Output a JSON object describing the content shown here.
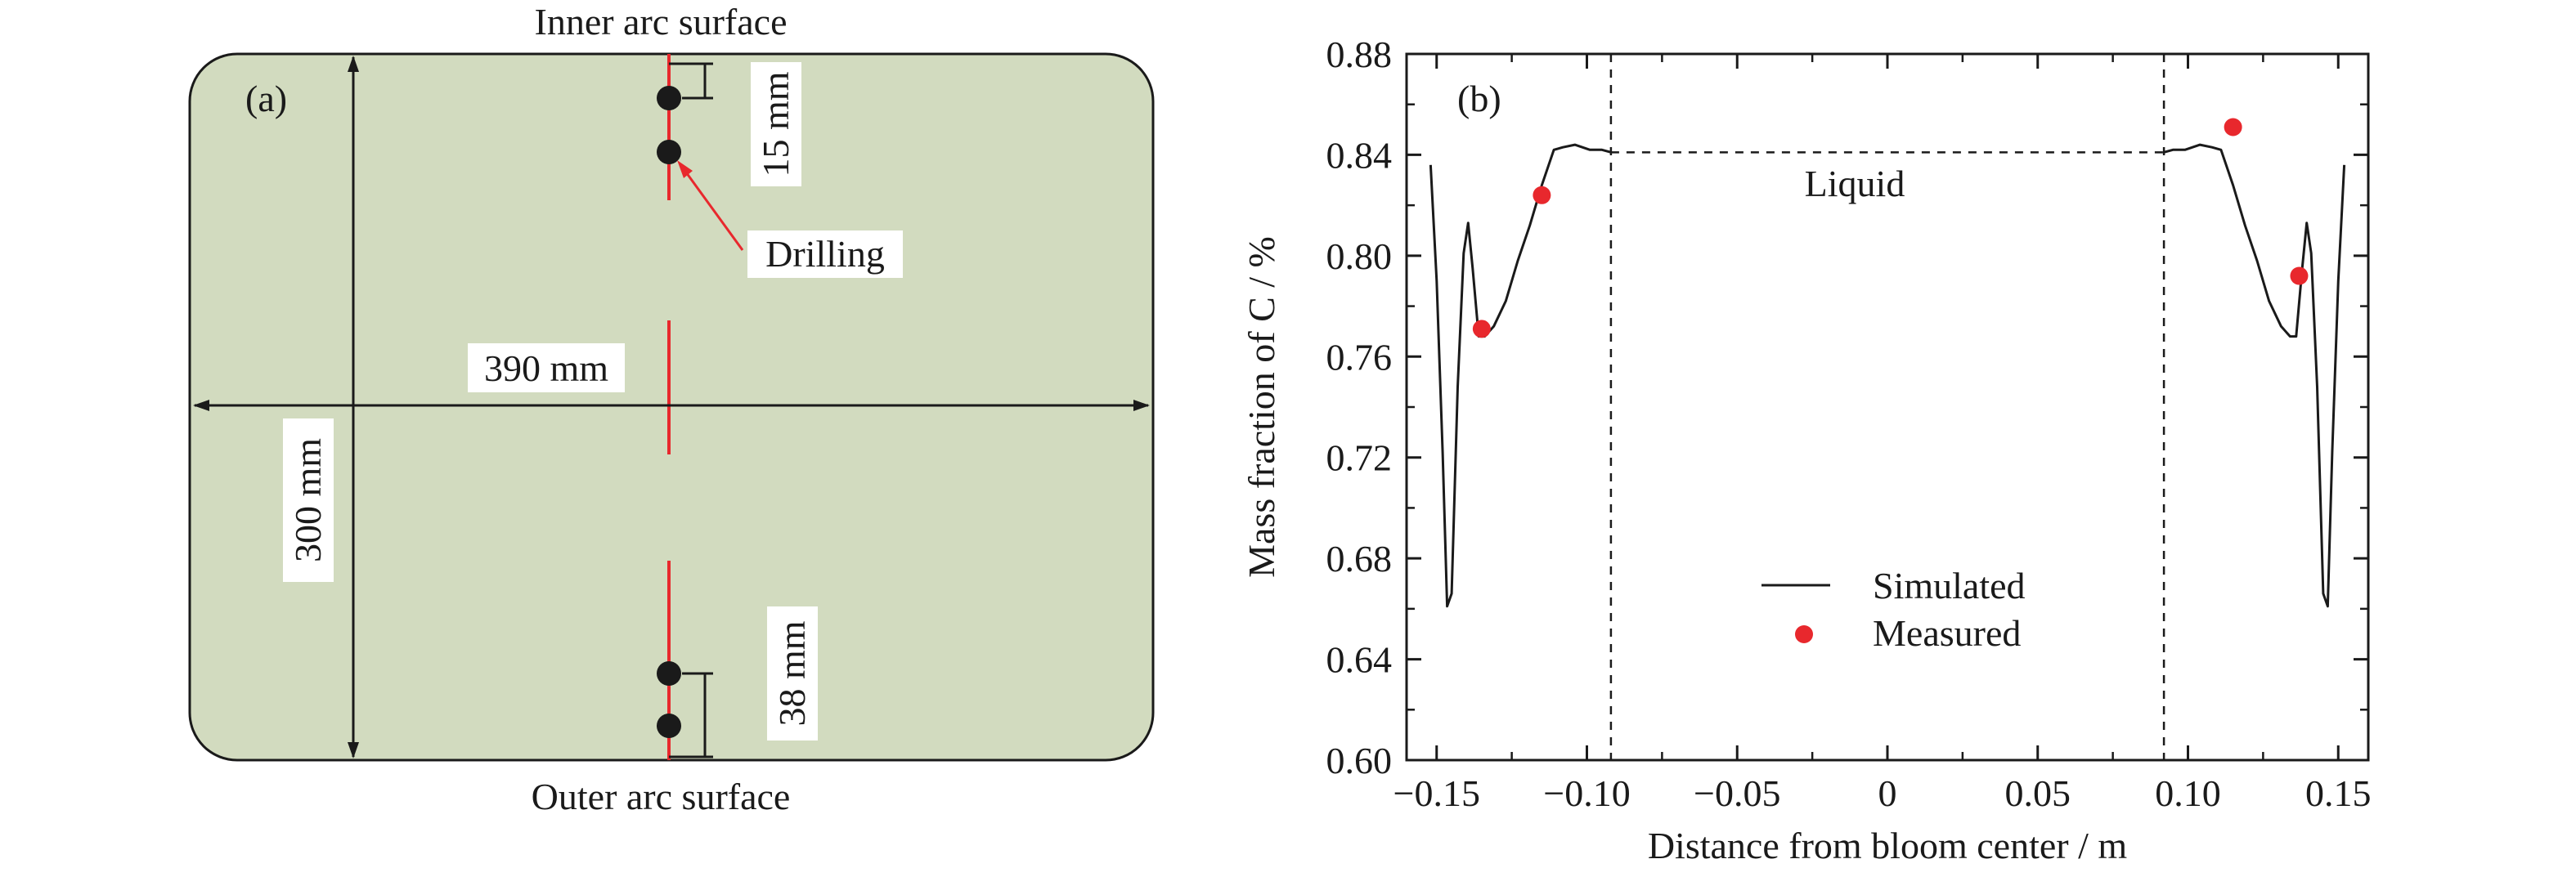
{
  "panel_a": {
    "label": "(a)",
    "top_caption": "Inner arc surface",
    "bottom_caption": "Outer arc surface",
    "width_label": "390 mm",
    "height_label": "300 mm",
    "top_offset_label": "15 mm",
    "bottom_offset_label": "38 mm",
    "drilling_label": "Drilling",
    "colors": {
      "section_fill": "#d2dbbf",
      "centerline": "#e8282d",
      "hole": "#1a1a1a"
    }
  },
  "chart_data": {
    "type": "line",
    "panel_label": "(b)",
    "xlabel": "Distance from bloom center / m",
    "ylabel": "Mass fraction of C / %",
    "xlim": [
      -0.16,
      0.16
    ],
    "ylim": [
      0.6,
      0.88
    ],
    "xticks": [
      -0.15,
      -0.1,
      -0.05,
      0,
      0.05,
      0.1,
      0.15
    ],
    "xtick_labels": [
      "−0.15",
      "−0.10",
      "−0.05",
      "0",
      "0.05",
      "0.10",
      "0.15"
    ],
    "yticks": [
      0.6,
      0.64,
      0.68,
      0.72,
      0.76,
      0.8,
      0.84,
      0.88
    ],
    "ytick_labels": [
      "0.60",
      "0.64",
      "0.68",
      "0.72",
      "0.76",
      "0.80",
      "0.84",
      "0.88"
    ],
    "vlines": [
      -0.092,
      0.092
    ],
    "liquid_level": 0.841,
    "annotation": "Liquid",
    "legend": {
      "placement": "lower-center",
      "entries": [
        "Simulated",
        "Measured"
      ]
    },
    "colors": {
      "simulated": "#1a1a1a",
      "measured": "#e8282d"
    },
    "series": [
      {
        "name": "Simulated",
        "style": "solid",
        "x": [
          -0.152,
          -0.15,
          -0.148,
          -0.1465,
          -0.145,
          -0.143,
          -0.141,
          -0.1395,
          -0.138,
          -0.136,
          -0.134,
          -0.131,
          -0.127,
          -0.123,
          -0.119,
          -0.115,
          -0.111,
          -0.108,
          -0.104,
          -0.099,
          -0.095,
          -0.092
        ],
        "y": [
          0.836,
          0.79,
          0.722,
          0.661,
          0.666,
          0.748,
          0.801,
          0.813,
          0.795,
          0.768,
          0.768,
          0.772,
          0.782,
          0.798,
          0.812,
          0.828,
          0.842,
          0.843,
          0.844,
          0.842,
          0.842,
          0.841
        ]
      },
      {
        "name": "",
        "style": "solid",
        "x": [
          0.092,
          0.095,
          0.099,
          0.104,
          0.108,
          0.111,
          0.115,
          0.119,
          0.123,
          0.127,
          0.131,
          0.134,
          0.136,
          0.138,
          0.1395,
          0.141,
          0.143,
          0.145,
          0.1465,
          0.148,
          0.15,
          0.152
        ],
        "y": [
          0.841,
          0.842,
          0.842,
          0.844,
          0.843,
          0.842,
          0.828,
          0.812,
          0.798,
          0.782,
          0.772,
          0.768,
          0.768,
          0.795,
          0.813,
          0.801,
          0.748,
          0.666,
          0.661,
          0.722,
          0.79,
          0.836
        ]
      },
      {
        "name": "Measured",
        "style": "points",
        "x": [
          -0.135,
          -0.115,
          0.115,
          0.137
        ],
        "y": [
          0.771,
          0.824,
          0.851,
          0.792
        ]
      }
    ]
  }
}
